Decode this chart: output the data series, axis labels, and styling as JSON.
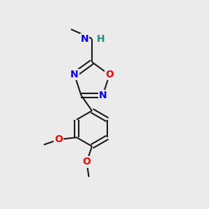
{
  "background_color": "#ebebeb",
  "bond_color": "#1a1a1a",
  "bond_width": 1.5,
  "atom_colors": {
    "N": "#0000ee",
    "O": "#ee0000",
    "H": "#228b8b",
    "C": "#1a1a1a"
  },
  "figsize": [
    3.0,
    3.0
  ],
  "dpi": 100,
  "label_fontsize": 10,
  "methyl_fontsize": 9
}
